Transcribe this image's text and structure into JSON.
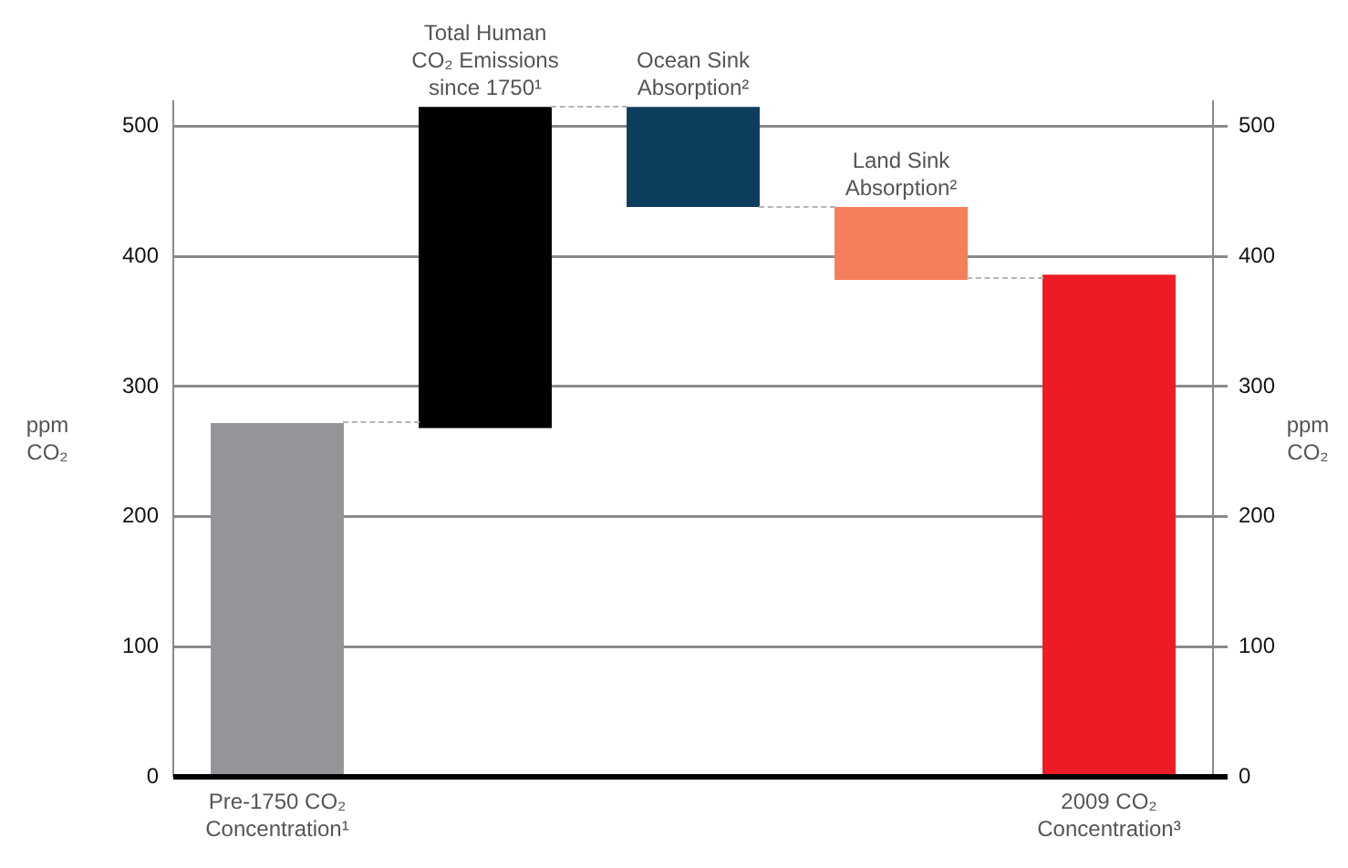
{
  "chart_data": {
    "type": "bar",
    "ylabel": "ppm CO₂",
    "y2label": "ppm CO₂",
    "categories": [
      "Pre-1750 CO₂ Concentration¹",
      "Total Human CO₂ Emissions since 1750¹",
      "Ocean Sink Absorption²",
      "Land Sink Absorption²",
      "2009 CO₂ Concentration³"
    ],
    "values": [
      272,
      247,
      -77,
      -56,
      386
    ],
    "base": [
      0,
      268,
      515,
      438,
      0
    ],
    "colors": [
      "#939598",
      "#000000",
      "#0d3d5c",
      "#f47f5a",
      "#ed1c24"
    ],
    "ylim": [
      0,
      520
    ],
    "yticks": [
      0,
      100,
      200,
      300,
      400,
      500
    ],
    "y2lim": [
      0,
      520
    ],
    "y2ticks": [
      0,
      100,
      200,
      300,
      400,
      500
    ],
    "grid": "y",
    "legend": false
  }
}
